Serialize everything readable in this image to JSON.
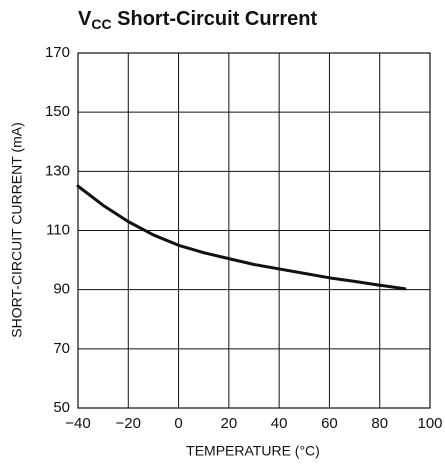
{
  "chart_data": {
    "type": "line",
    "title": [
      "V",
      "CC",
      " Short-Circuit Current"
    ],
    "x_label": "TEMPERATURE (°C)",
    "y_label": "SHORT-CIRCUIT CURRENT (mA)",
    "x": [
      -40,
      -30,
      -20,
      -10,
      0,
      10,
      20,
      30,
      40,
      50,
      60,
      70,
      80,
      90
    ],
    "series": [
      {
        "color": "#111111",
        "values": [
          125,
          118.5,
          113,
          108.5,
          105,
          102.5,
          100.5,
          98.5,
          97,
          95.5,
          94,
          92.8,
          91.5,
          90.3
        ]
      }
    ],
    "xlim": [
      -40,
      100
    ],
    "xticks": [
      {
        "value": -40,
        "label": "−40"
      },
      {
        "value": -20,
        "label": "−20"
      },
      0,
      20,
      40,
      60,
      80,
      100
    ],
    "ylim": [
      50,
      170
    ],
    "yticks": [
      50,
      70,
      90,
      110,
      130,
      150,
      170
    ],
    "grid": true
  }
}
